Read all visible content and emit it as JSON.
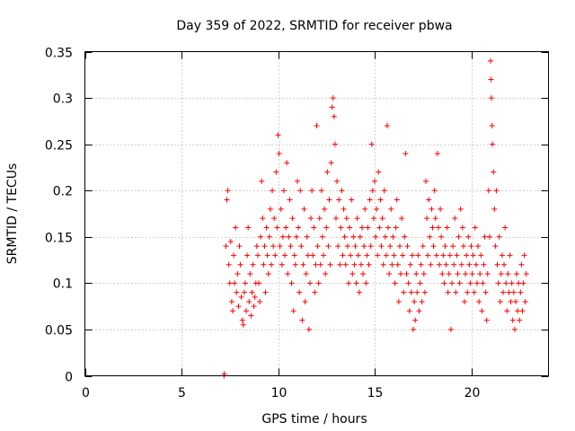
{
  "chart_data": {
    "type": "scatter",
    "title": "Day 359 of 2022, SRMTID for receiver pbwa",
    "xlabel": "GPS time / hours",
    "ylabel": "SRMTID / TECUs",
    "xlim": [
      0,
      24
    ],
    "ylim": [
      0,
      0.35
    ],
    "xticks": [
      0,
      5,
      10,
      15,
      20
    ],
    "yticks": [
      0,
      0.05,
      0.1,
      0.15,
      0.2,
      0.25,
      0.3,
      0.35
    ],
    "xtick_labels": [
      "0",
      "5",
      "10",
      "15",
      "20"
    ],
    "ytick_labels": [
      "0",
      "0.05",
      "0.1",
      "0.15",
      "0.2",
      "0.25",
      "0.3",
      "0.35"
    ],
    "grid": true,
    "marker": "+",
    "color": "#ff0000",
    "series": [
      {
        "name": "SRMTID",
        "points": [
          [
            7.2,
            0.0
          ],
          [
            7.22,
            0.002
          ],
          [
            7.3,
            0.14
          ],
          [
            7.35,
            0.19
          ],
          [
            7.4,
            0.2
          ],
          [
            7.45,
            0.12
          ],
          [
            7.5,
            0.1
          ],
          [
            7.55,
            0.145
          ],
          [
            7.6,
            0.08
          ],
          [
            7.65,
            0.07
          ],
          [
            7.7,
            0.13
          ],
          [
            7.75,
            0.1
          ],
          [
            7.8,
            0.16
          ],
          [
            7.85,
            0.09
          ],
          [
            7.9,
            0.11
          ],
          [
            7.95,
            0.075
          ],
          [
            8.0,
            0.14
          ],
          [
            8.05,
            0.12
          ],
          [
            8.1,
            0.085
          ],
          [
            8.15,
            0.06
          ],
          [
            8.2,
            0.055
          ],
          [
            8.25,
            0.09
          ],
          [
            8.3,
            0.1
          ],
          [
            8.35,
            0.07
          ],
          [
            8.4,
            0.13
          ],
          [
            8.45,
            0.16
          ],
          [
            8.5,
            0.08
          ],
          [
            8.55,
            0.11
          ],
          [
            8.6,
            0.065
          ],
          [
            8.65,
            0.09
          ],
          [
            8.7,
            0.12
          ],
          [
            8.75,
            0.075
          ],
          [
            8.8,
            0.085
          ],
          [
            8.85,
            0.1
          ],
          [
            8.9,
            0.14
          ],
          [
            8.95,
            0.13
          ],
          [
            9.0,
            0.1
          ],
          [
            9.05,
            0.08
          ],
          [
            9.1,
            0.15
          ],
          [
            9.15,
            0.21
          ],
          [
            9.2,
            0.17
          ],
          [
            9.25,
            0.12
          ],
          [
            9.3,
            0.14
          ],
          [
            9.35,
            0.09
          ],
          [
            9.4,
            0.16
          ],
          [
            9.45,
            0.13
          ],
          [
            9.5,
            0.11
          ],
          [
            9.55,
            0.15
          ],
          [
            9.6,
            0.18
          ],
          [
            9.65,
            0.12
          ],
          [
            9.7,
            0.2
          ],
          [
            9.75,
            0.14
          ],
          [
            9.8,
            0.17
          ],
          [
            9.85,
            0.13
          ],
          [
            9.9,
            0.22
          ],
          [
            9.95,
            0.16
          ],
          [
            10.0,
            0.26
          ],
          [
            10.05,
            0.24
          ],
          [
            10.1,
            0.14
          ],
          [
            10.15,
            0.18
          ],
          [
            10.2,
            0.12
          ],
          [
            10.25,
            0.15
          ],
          [
            10.3,
            0.2
          ],
          [
            10.35,
            0.13
          ],
          [
            10.4,
            0.16
          ],
          [
            10.45,
            0.23
          ],
          [
            10.5,
            0.11
          ],
          [
            10.55,
            0.15
          ],
          [
            10.6,
            0.19
          ],
          [
            10.65,
            0.14
          ],
          [
            10.7,
            0.1
          ],
          [
            10.75,
            0.17
          ],
          [
            10.8,
            0.07
          ],
          [
            10.85,
            0.13
          ],
          [
            10.9,
            0.12
          ],
          [
            10.95,
            0.15
          ],
          [
            11.0,
            0.21
          ],
          [
            11.05,
            0.16
          ],
          [
            11.1,
            0.09
          ],
          [
            11.15,
            0.2
          ],
          [
            11.2,
            0.14
          ],
          [
            11.25,
            0.06
          ],
          [
            11.3,
            0.12
          ],
          [
            11.35,
            0.18
          ],
          [
            11.4,
            0.08
          ],
          [
            11.45,
            0.11
          ],
          [
            11.5,
            0.15
          ],
          [
            11.55,
            0.13
          ],
          [
            11.6,
            0.05
          ],
          [
            11.65,
            0.1
          ],
          [
            11.7,
            0.17
          ],
          [
            11.75,
            0.2
          ],
          [
            11.8,
            0.13
          ],
          [
            11.85,
            0.16
          ],
          [
            11.9,
            0.09
          ],
          [
            11.95,
            0.12
          ],
          [
            12.0,
            0.27
          ],
          [
            12.05,
            0.14
          ],
          [
            12.1,
            0.1
          ],
          [
            12.15,
            0.17
          ],
          [
            12.2,
            0.12
          ],
          [
            12.25,
            0.2
          ],
          [
            12.3,
            0.15
          ],
          [
            12.35,
            0.13
          ],
          [
            12.4,
            0.18
          ],
          [
            12.45,
            0.11
          ],
          [
            12.5,
            0.16
          ],
          [
            12.55,
            0.22
          ],
          [
            12.6,
            0.14
          ],
          [
            12.65,
            0.19
          ],
          [
            12.7,
            0.12
          ],
          [
            12.75,
            0.23
          ],
          [
            12.8,
            0.29
          ],
          [
            12.85,
            0.3
          ],
          [
            12.9,
            0.28
          ],
          [
            12.95,
            0.25
          ],
          [
            13.0,
            0.17
          ],
          [
            13.05,
            0.21
          ],
          [
            13.1,
            0.14
          ],
          [
            13.15,
            0.19
          ],
          [
            13.2,
            0.12
          ],
          [
            13.25,
            0.16
          ],
          [
            13.3,
            0.2
          ],
          [
            13.35,
            0.13
          ],
          [
            13.4,
            0.18
          ],
          [
            13.45,
            0.15
          ],
          [
            13.5,
            0.12
          ],
          [
            13.55,
            0.17
          ],
          [
            13.6,
            0.14
          ],
          [
            13.65,
            0.1
          ],
          [
            13.7,
            0.16
          ],
          [
            13.75,
            0.13
          ],
          [
            13.8,
            0.19
          ],
          [
            13.85,
            0.11
          ],
          [
            13.9,
            0.15
          ],
          [
            13.95,
            0.12
          ],
          [
            14.0,
            0.14
          ],
          [
            14.05,
            0.1
          ],
          [
            14.1,
            0.17
          ],
          [
            14.15,
            0.13
          ],
          [
            14.2,
            0.09
          ],
          [
            14.25,
            0.15
          ],
          [
            14.3,
            0.12
          ],
          [
            14.35,
            0.16
          ],
          [
            14.4,
            0.11
          ],
          [
            14.45,
            0.14
          ],
          [
            14.5,
            0.18
          ],
          [
            14.55,
            0.1
          ],
          [
            14.6,
            0.13
          ],
          [
            14.65,
            0.16
          ],
          [
            14.7,
            0.12
          ],
          [
            14.75,
            0.19
          ],
          [
            14.8,
            0.14
          ],
          [
            14.85,
            0.25
          ],
          [
            14.9,
            0.2
          ],
          [
            14.95,
            0.17
          ],
          [
            15.0,
            0.21
          ],
          [
            15.05,
            0.15
          ],
          [
            15.1,
            0.18
          ],
          [
            15.15,
            0.13
          ],
          [
            15.2,
            0.22
          ],
          [
            15.25,
            0.16
          ],
          [
            15.3,
            0.19
          ],
          [
            15.35,
            0.14
          ],
          [
            15.4,
            0.17
          ],
          [
            15.45,
            0.12
          ],
          [
            15.5,
            0.2
          ],
          [
            15.55,
            0.15
          ],
          [
            15.6,
            0.13
          ],
          [
            15.65,
            0.27
          ],
          [
            15.7,
            0.16
          ],
          [
            15.75,
            0.11
          ],
          [
            15.8,
            0.14
          ],
          [
            15.85,
            0.18
          ],
          [
            15.9,
            0.12
          ],
          [
            15.95,
            0.15
          ],
          [
            16.0,
            0.13
          ],
          [
            16.05,
            0.1
          ],
          [
            16.1,
            0.16
          ],
          [
            16.15,
            0.19
          ],
          [
            16.2,
            0.12
          ],
          [
            16.25,
            0.08
          ],
          [
            16.3,
            0.14
          ],
          [
            16.35,
            0.11
          ],
          [
            16.4,
            0.17
          ],
          [
            16.45,
            0.13
          ],
          [
            16.5,
            0.09
          ],
          [
            16.55,
            0.15
          ],
          [
            16.6,
            0.24
          ],
          [
            16.65,
            0.11
          ],
          [
            16.7,
            0.14
          ],
          [
            16.75,
            0.1
          ],
          [
            16.8,
            0.07
          ],
          [
            16.85,
            0.12
          ],
          [
            16.9,
            0.09
          ],
          [
            16.95,
            0.13
          ],
          [
            17.0,
            0.05
          ],
          [
            17.05,
            0.08
          ],
          [
            17.1,
            0.06
          ],
          [
            17.15,
            0.11
          ],
          [
            17.2,
            0.09
          ],
          [
            17.25,
            0.13
          ],
          [
            17.3,
            0.07
          ],
          [
            17.35,
            0.1
          ],
          [
            17.4,
            0.12
          ],
          [
            17.45,
            0.08
          ],
          [
            17.5,
            0.14
          ],
          [
            17.55,
            0.11
          ],
          [
            17.6,
            0.09
          ],
          [
            17.65,
            0.21
          ],
          [
            17.7,
            0.17
          ],
          [
            17.75,
            0.13
          ],
          [
            17.8,
            0.19
          ],
          [
            17.85,
            0.15
          ],
          [
            17.9,
            0.12
          ],
          [
            17.95,
            0.18
          ],
          [
            18.0,
            0.16
          ],
          [
            18.05,
            0.14
          ],
          [
            18.1,
            0.2
          ],
          [
            18.15,
            0.17
          ],
          [
            18.2,
            0.13
          ],
          [
            18.25,
            0.24
          ],
          [
            18.3,
            0.16
          ],
          [
            18.35,
            0.12
          ],
          [
            18.4,
            0.18
          ],
          [
            18.45,
            0.15
          ],
          [
            18.5,
            0.11
          ],
          [
            18.55,
            0.13
          ],
          [
            18.6,
            0.1
          ],
          [
            18.65,
            0.14
          ],
          [
            18.7,
            0.12
          ],
          [
            18.75,
            0.16
          ],
          [
            18.8,
            0.09
          ],
          [
            18.85,
            0.11
          ],
          [
            18.9,
            0.13
          ],
          [
            18.95,
            0.05
          ],
          [
            19.0,
            0.1
          ],
          [
            19.05,
            0.14
          ],
          [
            19.1,
            0.12
          ],
          [
            19.15,
            0.17
          ],
          [
            19.2,
            0.09
          ],
          [
            19.25,
            0.13
          ],
          [
            19.3,
            0.11
          ],
          [
            19.35,
            0.15
          ],
          [
            19.4,
            0.1
          ],
          [
            19.45,
            0.18
          ],
          [
            19.5,
            0.12
          ],
          [
            19.55,
            0.16
          ],
          [
            19.6,
            0.14
          ],
          [
            19.65,
            0.08
          ],
          [
            19.7,
            0.11
          ],
          [
            19.75,
            0.13
          ],
          [
            19.8,
            0.09
          ],
          [
            19.85,
            0.15
          ],
          [
            19.9,
            0.12
          ],
          [
            19.95,
            0.1
          ],
          [
            20.0,
            0.14
          ],
          [
            20.05,
            0.11
          ],
          [
            20.1,
            0.13
          ],
          [
            20.15,
            0.09
          ],
          [
            20.2,
            0.16
          ],
          [
            20.25,
            0.12
          ],
          [
            20.3,
            0.1
          ],
          [
            20.35,
            0.14
          ],
          [
            20.4,
            0.08
          ],
          [
            20.45,
            0.11
          ],
          [
            20.5,
            0.13
          ],
          [
            20.55,
            0.07
          ],
          [
            20.6,
            0.1
          ],
          [
            20.65,
            0.12
          ],
          [
            20.7,
            0.15
          ],
          [
            20.75,
            0.09
          ],
          [
            20.8,
            0.06
          ],
          [
            20.85,
            0.11
          ],
          [
            20.9,
            0.2
          ],
          [
            20.95,
            0.15
          ],
          [
            21.0,
            0.34
          ],
          [
            21.02,
            0.32
          ],
          [
            21.05,
            0.3
          ],
          [
            21.08,
            0.27
          ],
          [
            21.1,
            0.25
          ],
          [
            21.15,
            0.22
          ],
          [
            21.2,
            0.18
          ],
          [
            21.25,
            0.14
          ],
          [
            21.3,
            0.2
          ],
          [
            21.35,
            0.12
          ],
          [
            21.4,
            0.1
          ],
          [
            21.45,
            0.15
          ],
          [
            21.5,
            0.08
          ],
          [
            21.55,
            0.11
          ],
          [
            21.6,
            0.13
          ],
          [
            21.65,
            0.09
          ],
          [
            21.7,
            0.12
          ],
          [
            21.75,
            0.16
          ],
          [
            21.8,
            0.1
          ],
          [
            21.85,
            0.07
          ],
          [
            21.9,
            0.11
          ],
          [
            21.95,
            0.09
          ],
          [
            22.0,
            0.13
          ],
          [
            22.05,
            0.08
          ],
          [
            22.1,
            0.1
          ],
          [
            22.15,
            0.06
          ],
          [
            22.2,
            0.09
          ],
          [
            22.25,
            0.05
          ],
          [
            22.3,
            0.08
          ],
          [
            22.35,
            0.11
          ],
          [
            22.4,
            0.07
          ],
          [
            22.45,
            0.1
          ],
          [
            22.5,
            0.06
          ],
          [
            22.55,
            0.09
          ],
          [
            22.6,
            0.12
          ],
          [
            22.65,
            0.07
          ],
          [
            22.7,
            0.1
          ],
          [
            22.75,
            0.13
          ],
          [
            22.8,
            0.08
          ],
          [
            22.85,
            0.11
          ]
        ]
      }
    ]
  }
}
